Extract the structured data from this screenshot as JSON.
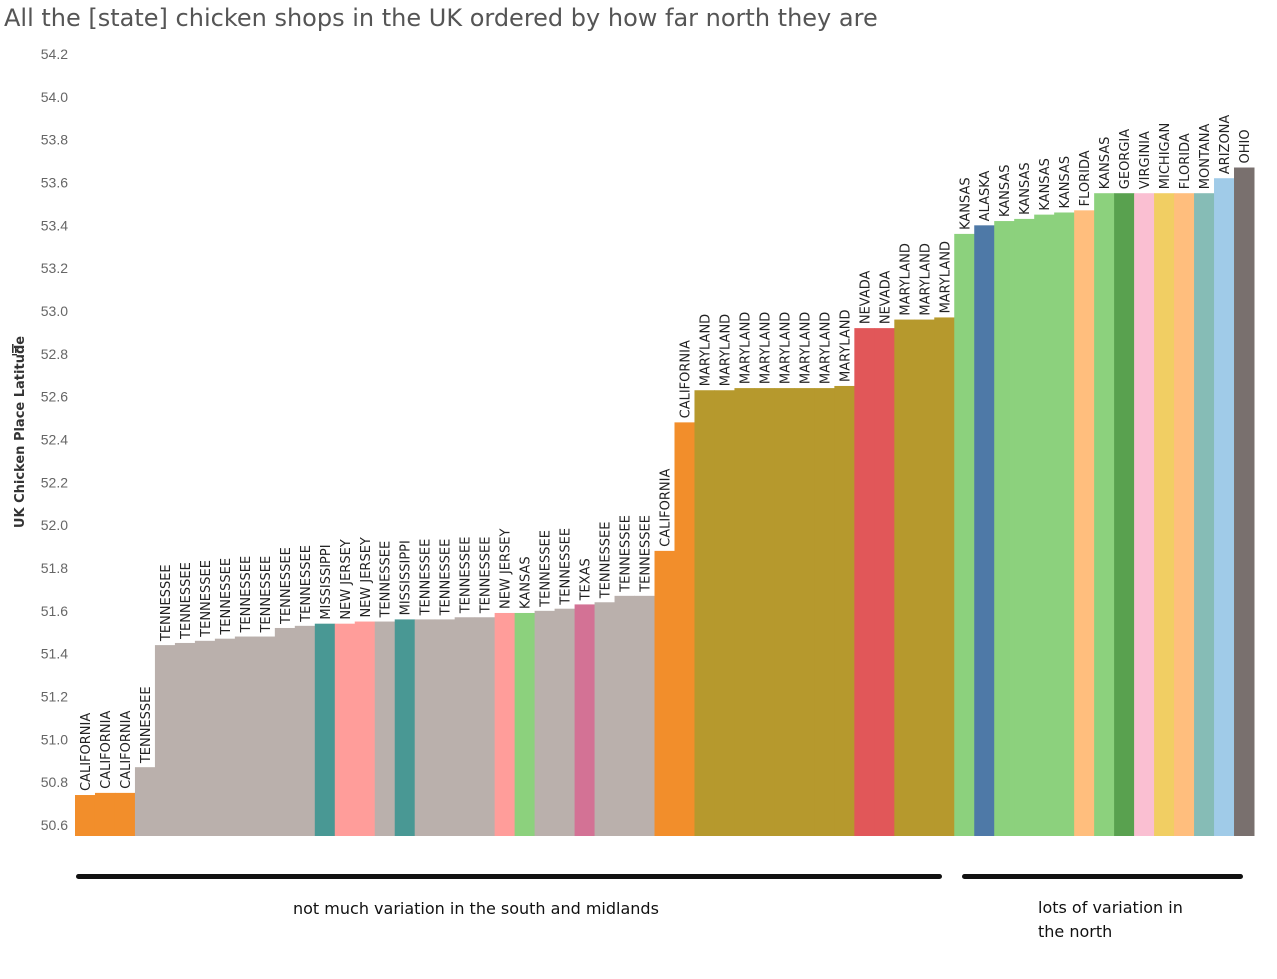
{
  "title": "All the [state] chicken shops in the UK ordered by how far north they are",
  "chart_data": {
    "type": "bar",
    "title": "All the [state] chicken shops in the UK ordered by how far north they are",
    "xlabel": "",
    "ylabel": "UK Chicken Place Latitude",
    "ylabel_icon": "sort-icon",
    "ylim": [
      50.55,
      54.25
    ],
    "yticks": [
      "50.6",
      "50.8",
      "51.0",
      "51.2",
      "51.4",
      "51.6",
      "51.8",
      "52.0",
      "52.2",
      "52.4",
      "52.6",
      "52.8",
      "53.0",
      "53.2",
      "53.4",
      "53.6",
      "53.8",
      "54.0",
      "54.2"
    ],
    "colors": {
      "CALIFORNIA": "#f28e2b",
      "TENNESSEE": "#bab0ac",
      "MISSISSIPPI": "#499894",
      "NEW JERSEY": "#ff9d9a",
      "KANSAS": "#8cd17d",
      "TEXAS": "#d37295",
      "MARYLAND": "#b6992d",
      "NEVADA": "#e15759",
      "ALASKA": "#4e79a7",
      "FLORIDA": "#ffbe7d",
      "GEORGIA": "#59a14f",
      "VIRGINIA": "#fabfd2",
      "MICHIGAN": "#f1ce63",
      "MONTANA": "#86bcb6",
      "ARIZONA": "#a0cbe8",
      "OHIO": "#79706e"
    },
    "categories": [
      "CALIFORNIA",
      "CALIFORNIA",
      "CALIFORNIA",
      "TENNESSEE",
      "TENNESSEE",
      "TENNESSEE",
      "TENNESSEE",
      "TENNESSEE",
      "TENNESSEE",
      "TENNESSEE",
      "TENNESSEE",
      "TENNESSEE",
      "MISSISSIPPI",
      "NEW JERSEY",
      "NEW JERSEY",
      "TENNESSEE",
      "MISSISSIPPI",
      "TENNESSEE",
      "TENNESSEE",
      "TENNESSEE",
      "TENNESSEE",
      "NEW JERSEY",
      "KANSAS",
      "TENNESSEE",
      "TENNESSEE",
      "TEXAS",
      "TENNESSEE",
      "TENNESSEE",
      "TENNESSEE",
      "CALIFORNIA",
      "CALIFORNIA",
      "MARYLAND",
      "MARYLAND",
      "MARYLAND",
      "MARYLAND",
      "MARYLAND",
      "MARYLAND",
      "MARYLAND",
      "MARYLAND",
      "NEVADA",
      "NEVADA",
      "MARYLAND",
      "MARYLAND",
      "MARYLAND",
      "KANSAS",
      "ALASKA",
      "KANSAS",
      "KANSAS",
      "KANSAS",
      "KANSAS",
      "FLORIDA",
      "KANSAS",
      "GEORGIA",
      "VIRGINIA",
      "MICHIGAN",
      "FLORIDA",
      "MONTANA",
      "ARIZONA",
      "OHIO"
    ],
    "values": [
      50.74,
      50.75,
      50.75,
      50.87,
      51.44,
      51.45,
      51.46,
      51.47,
      51.48,
      51.48,
      51.52,
      51.53,
      51.54,
      51.54,
      51.55,
      51.55,
      51.56,
      51.56,
      51.56,
      51.57,
      51.57,
      51.59,
      51.59,
      51.6,
      51.61,
      51.63,
      51.64,
      51.67,
      51.67,
      51.88,
      52.48,
      52.63,
      52.63,
      52.64,
      52.64,
      52.64,
      52.64,
      52.64,
      52.65,
      52.92,
      52.92,
      52.96,
      52.96,
      52.97,
      53.36,
      53.4,
      53.42,
      53.43,
      53.45,
      53.46,
      53.47,
      53.55,
      53.55,
      53.55,
      53.55,
      53.55,
      53.55,
      53.62,
      53.67
    ]
  },
  "annotations": {
    "south": "not much variation in the south and midlands",
    "north": "lots of variation in the north"
  }
}
